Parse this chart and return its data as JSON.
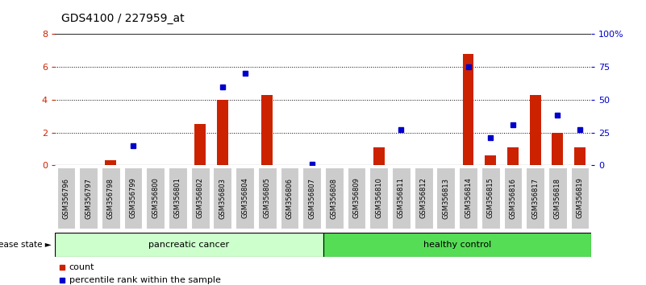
{
  "title": "GDS4100 / 227959_at",
  "categories": [
    "GSM356796",
    "GSM356797",
    "GSM356798",
    "GSM356799",
    "GSM356800",
    "GSM356801",
    "GSM356802",
    "GSM356803",
    "GSM356804",
    "GSM356805",
    "GSM356806",
    "GSM356807",
    "GSM356808",
    "GSM356809",
    "GSM356810",
    "GSM356811",
    "GSM356812",
    "GSM356813",
    "GSM356814",
    "GSM356815",
    "GSM356816",
    "GSM356817",
    "GSM356818",
    "GSM356819"
  ],
  "count_values": [
    0,
    0,
    0.3,
    0.0,
    0,
    0,
    2.5,
    4.0,
    0,
    4.3,
    0,
    0,
    0,
    0,
    1.1,
    0,
    0,
    0,
    6.8,
    0.6,
    1.1,
    4.3,
    2.0,
    1.1
  ],
  "percentile_values": [
    null,
    null,
    null,
    15,
    null,
    null,
    null,
    60,
    70,
    null,
    null,
    1,
    null,
    null,
    null,
    27,
    null,
    null,
    75,
    21,
    31,
    null,
    38,
    27
  ],
  "ylim_left": [
    0,
    8
  ],
  "ylim_right": [
    0,
    100
  ],
  "yticks_left": [
    0,
    2,
    4,
    6,
    8
  ],
  "ytick_labels_left": [
    "0",
    "2",
    "4",
    "6",
    "8"
  ],
  "yticks_right": [
    0,
    25,
    50,
    75,
    100
  ],
  "ytick_labels_right": [
    "0",
    "25",
    "50",
    "75",
    "100%"
  ],
  "bar_color": "#cc2200",
  "dot_color": "#0000cc",
  "background_color": "#ffffff",
  "pancreatic_label": "pancreatic cancer",
  "healthy_label": "healthy control",
  "disease_state_label": "disease state",
  "legend_count_label": "count",
  "legend_percentile_label": "percentile rank within the sample",
  "panel_color_pancreatic": "#ccffcc",
  "panel_color_healthy": "#55dd55",
  "tick_bg_color": "#cccccc",
  "n_pancreatic": 12,
  "n_total": 24
}
